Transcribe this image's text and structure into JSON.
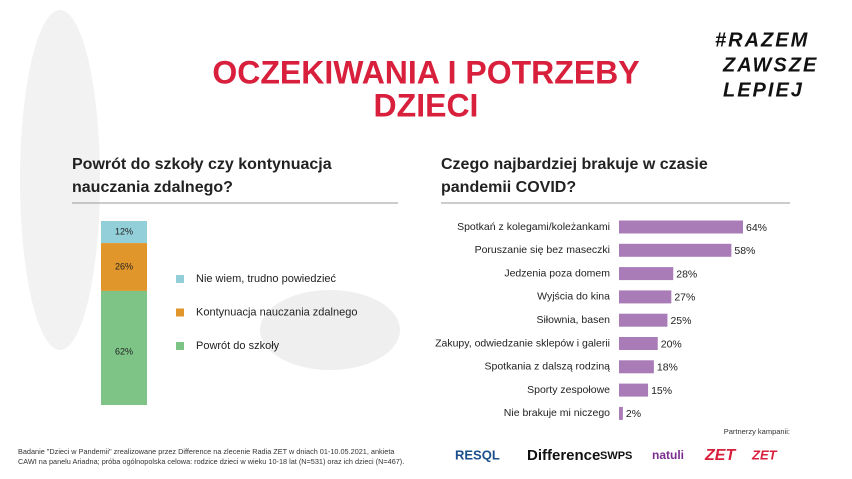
{
  "title": [
    "OCZEKIWANIA I POTRZEBY",
    "DZIECI"
  ],
  "hashtag": [
    "#RAZEM",
    "ZAWSZE",
    "LEPIEJ"
  ],
  "chart_data": [
    {
      "type": "stacked_bar",
      "title": [
        "Powrót do szkoły czy kontynuacja",
        "nauczania zdalnego?"
      ],
      "series": [
        {
          "name": "Nie wiem, trudno powiedzieć",
          "color": "#92cfd8",
          "values": [
            12
          ],
          "value_labels": [
            "12%"
          ]
        },
        {
          "name": "Kontynuacja nauczania zdalnego",
          "color": "#e0962a",
          "values": [
            26
          ],
          "value_labels": [
            "26%"
          ]
        },
        {
          "name": "Powrót do szkoły",
          "color": "#7dc486",
          "values": [
            62
          ],
          "value_labels": [
            "62%"
          ]
        }
      ]
    },
    {
      "type": "hbar",
      "title": [
        "Czego najbardziej brakuje w czasie",
        "pandemii COVID?"
      ],
      "color": "#a97cb8",
      "categories": [
        "Spotkań z kolegami/koleżankami",
        "Poruszanie się bez maseczki",
        "Jedzenia poza domem",
        "Wyjścia do kina",
        "Siłownia, basen",
        "Zakupy, odwiedzanie sklepów i galerii",
        "Spotkania z dalszą rodziną",
        "Sporty zespołowe",
        "Nie brakuje mi niczego"
      ],
      "values": [
        64,
        58,
        28,
        27,
        25,
        20,
        18,
        15,
        2
      ],
      "value_labels": [
        "64%",
        "58%",
        "28%",
        "27%",
        "25%",
        "20%",
        "18%",
        "15%",
        "2%"
      ]
    }
  ],
  "footnote": [
    "Badanie \"Dzieci w Pandemii\" zrealizowane przez Difference na zlecenie Radia ZET w dniach 01-10.05.2021, ankieta",
    "CAWI na panelu Ariadna; próba ogólnopolska celowa: rodzice dzieci w wieku 10-18 lat (N=531) oraz ich dzieci (N=467)."
  ],
  "partners_label": "Partnerzy kampanii:",
  "partners": [
    "RESQL",
    "Difference",
    "SWPS",
    "natuli",
    "ZET",
    "ZET"
  ]
}
